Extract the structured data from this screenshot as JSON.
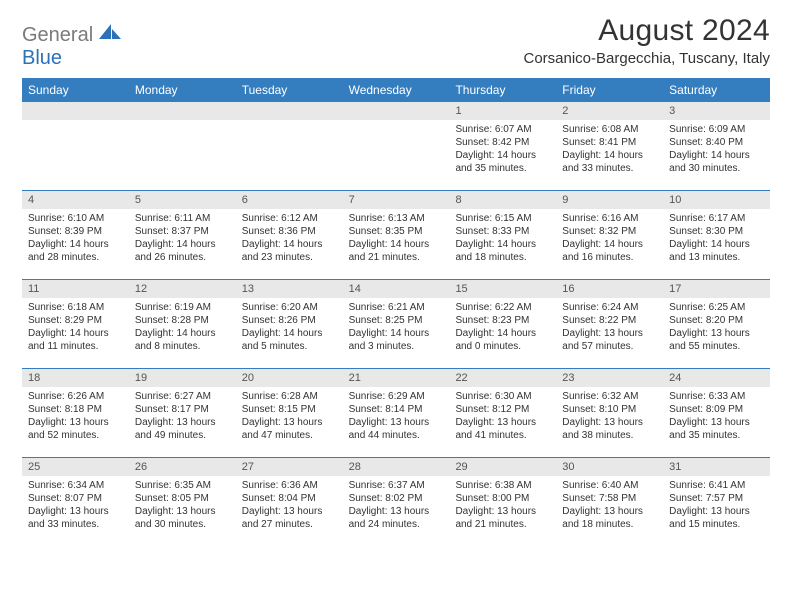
{
  "logo": {
    "gray": "General",
    "blue": "Blue"
  },
  "title": "August 2024",
  "location": "Corsanico-Bargecchia, Tuscany, Italy",
  "colors": {
    "header_bg": "#347ec0",
    "header_text": "#ffffff",
    "daynum_bg": "#e8e8e8",
    "text": "#333333",
    "logo_gray": "#7a7a7a",
    "logo_blue": "#2b72b9",
    "row_border": "#347ec0"
  },
  "day_headers": [
    "Sunday",
    "Monday",
    "Tuesday",
    "Wednesday",
    "Thursday",
    "Friday",
    "Saturday"
  ],
  "weeks": [
    [
      {
        "n": "",
        "sunrise": "",
        "sunset": "",
        "daylight": ""
      },
      {
        "n": "",
        "sunrise": "",
        "sunset": "",
        "daylight": ""
      },
      {
        "n": "",
        "sunrise": "",
        "sunset": "",
        "daylight": ""
      },
      {
        "n": "",
        "sunrise": "",
        "sunset": "",
        "daylight": ""
      },
      {
        "n": "1",
        "sunrise": "Sunrise: 6:07 AM",
        "sunset": "Sunset: 8:42 PM",
        "daylight": "Daylight: 14 hours and 35 minutes."
      },
      {
        "n": "2",
        "sunrise": "Sunrise: 6:08 AM",
        "sunset": "Sunset: 8:41 PM",
        "daylight": "Daylight: 14 hours and 33 minutes."
      },
      {
        "n": "3",
        "sunrise": "Sunrise: 6:09 AM",
        "sunset": "Sunset: 8:40 PM",
        "daylight": "Daylight: 14 hours and 30 minutes."
      }
    ],
    [
      {
        "n": "4",
        "sunrise": "Sunrise: 6:10 AM",
        "sunset": "Sunset: 8:39 PM",
        "daylight": "Daylight: 14 hours and 28 minutes."
      },
      {
        "n": "5",
        "sunrise": "Sunrise: 6:11 AM",
        "sunset": "Sunset: 8:37 PM",
        "daylight": "Daylight: 14 hours and 26 minutes."
      },
      {
        "n": "6",
        "sunrise": "Sunrise: 6:12 AM",
        "sunset": "Sunset: 8:36 PM",
        "daylight": "Daylight: 14 hours and 23 minutes."
      },
      {
        "n": "7",
        "sunrise": "Sunrise: 6:13 AM",
        "sunset": "Sunset: 8:35 PM",
        "daylight": "Daylight: 14 hours and 21 minutes."
      },
      {
        "n": "8",
        "sunrise": "Sunrise: 6:15 AM",
        "sunset": "Sunset: 8:33 PM",
        "daylight": "Daylight: 14 hours and 18 minutes."
      },
      {
        "n": "9",
        "sunrise": "Sunrise: 6:16 AM",
        "sunset": "Sunset: 8:32 PM",
        "daylight": "Daylight: 14 hours and 16 minutes."
      },
      {
        "n": "10",
        "sunrise": "Sunrise: 6:17 AM",
        "sunset": "Sunset: 8:30 PM",
        "daylight": "Daylight: 14 hours and 13 minutes."
      }
    ],
    [
      {
        "n": "11",
        "sunrise": "Sunrise: 6:18 AM",
        "sunset": "Sunset: 8:29 PM",
        "daylight": "Daylight: 14 hours and 11 minutes."
      },
      {
        "n": "12",
        "sunrise": "Sunrise: 6:19 AM",
        "sunset": "Sunset: 8:28 PM",
        "daylight": "Daylight: 14 hours and 8 minutes."
      },
      {
        "n": "13",
        "sunrise": "Sunrise: 6:20 AM",
        "sunset": "Sunset: 8:26 PM",
        "daylight": "Daylight: 14 hours and 5 minutes."
      },
      {
        "n": "14",
        "sunrise": "Sunrise: 6:21 AM",
        "sunset": "Sunset: 8:25 PM",
        "daylight": "Daylight: 14 hours and 3 minutes."
      },
      {
        "n": "15",
        "sunrise": "Sunrise: 6:22 AM",
        "sunset": "Sunset: 8:23 PM",
        "daylight": "Daylight: 14 hours and 0 minutes."
      },
      {
        "n": "16",
        "sunrise": "Sunrise: 6:24 AM",
        "sunset": "Sunset: 8:22 PM",
        "daylight": "Daylight: 13 hours and 57 minutes."
      },
      {
        "n": "17",
        "sunrise": "Sunrise: 6:25 AM",
        "sunset": "Sunset: 8:20 PM",
        "daylight": "Daylight: 13 hours and 55 minutes."
      }
    ],
    [
      {
        "n": "18",
        "sunrise": "Sunrise: 6:26 AM",
        "sunset": "Sunset: 8:18 PM",
        "daylight": "Daylight: 13 hours and 52 minutes."
      },
      {
        "n": "19",
        "sunrise": "Sunrise: 6:27 AM",
        "sunset": "Sunset: 8:17 PM",
        "daylight": "Daylight: 13 hours and 49 minutes."
      },
      {
        "n": "20",
        "sunrise": "Sunrise: 6:28 AM",
        "sunset": "Sunset: 8:15 PM",
        "daylight": "Daylight: 13 hours and 47 minutes."
      },
      {
        "n": "21",
        "sunrise": "Sunrise: 6:29 AM",
        "sunset": "Sunset: 8:14 PM",
        "daylight": "Daylight: 13 hours and 44 minutes."
      },
      {
        "n": "22",
        "sunrise": "Sunrise: 6:30 AM",
        "sunset": "Sunset: 8:12 PM",
        "daylight": "Daylight: 13 hours and 41 minutes."
      },
      {
        "n": "23",
        "sunrise": "Sunrise: 6:32 AM",
        "sunset": "Sunset: 8:10 PM",
        "daylight": "Daylight: 13 hours and 38 minutes."
      },
      {
        "n": "24",
        "sunrise": "Sunrise: 6:33 AM",
        "sunset": "Sunset: 8:09 PM",
        "daylight": "Daylight: 13 hours and 35 minutes."
      }
    ],
    [
      {
        "n": "25",
        "sunrise": "Sunrise: 6:34 AM",
        "sunset": "Sunset: 8:07 PM",
        "daylight": "Daylight: 13 hours and 33 minutes."
      },
      {
        "n": "26",
        "sunrise": "Sunrise: 6:35 AM",
        "sunset": "Sunset: 8:05 PM",
        "daylight": "Daylight: 13 hours and 30 minutes."
      },
      {
        "n": "27",
        "sunrise": "Sunrise: 6:36 AM",
        "sunset": "Sunset: 8:04 PM",
        "daylight": "Daylight: 13 hours and 27 minutes."
      },
      {
        "n": "28",
        "sunrise": "Sunrise: 6:37 AM",
        "sunset": "Sunset: 8:02 PM",
        "daylight": "Daylight: 13 hours and 24 minutes."
      },
      {
        "n": "29",
        "sunrise": "Sunrise: 6:38 AM",
        "sunset": "Sunset: 8:00 PM",
        "daylight": "Daylight: 13 hours and 21 minutes."
      },
      {
        "n": "30",
        "sunrise": "Sunrise: 6:40 AM",
        "sunset": "Sunset: 7:58 PM",
        "daylight": "Daylight: 13 hours and 18 minutes."
      },
      {
        "n": "31",
        "sunrise": "Sunrise: 6:41 AM",
        "sunset": "Sunset: 7:57 PM",
        "daylight": "Daylight: 13 hours and 15 minutes."
      }
    ]
  ]
}
